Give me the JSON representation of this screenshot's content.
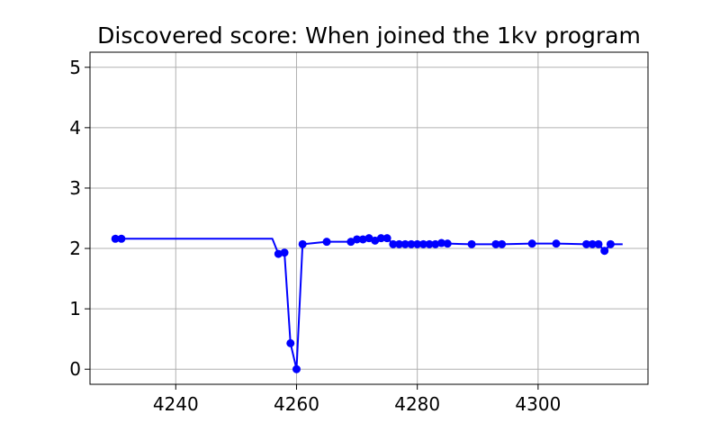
{
  "chart_data": {
    "type": "line",
    "title": "Discovered score: When joined the 1kv program",
    "xlabel": "",
    "ylabel": "",
    "xlim": [
      4225.8,
      4318.2
    ],
    "ylim": [
      -0.25,
      5.25
    ],
    "xticks": [
      4240,
      4260,
      4280,
      4300
    ],
    "yticks": [
      0,
      1,
      2,
      3,
      4,
      5
    ],
    "grid": true,
    "colors": {
      "line": "#0000ff",
      "grid": "#b0b0b0",
      "axes": "#000000"
    },
    "line": {
      "x": [
        4230,
        4256,
        4257,
        4258,
        4259,
        4260,
        4261,
        4265,
        4269,
        4270,
        4271,
        4272,
        4273,
        4274,
        4275,
        4276,
        4277,
        4278,
        4279,
        4280,
        4281,
        4282,
        4283,
        4284,
        4285,
        4289,
        4293,
        4294,
        4299,
        4303,
        4308,
        4309,
        4310,
        4311,
        4312,
        4314
      ],
      "y": [
        2.16,
        2.16,
        1.91,
        1.93,
        0.43,
        0.0,
        2.07,
        2.11,
        2.11,
        2.15,
        2.15,
        2.17,
        2.13,
        2.17,
        2.17,
        2.07,
        2.07,
        2.07,
        2.07,
        2.07,
        2.07,
        2.07,
        2.07,
        2.09,
        2.08,
        2.07,
        2.07,
        2.07,
        2.08,
        2.08,
        2.07,
        2.07,
        2.07,
        1.96,
        2.07,
        2.07
      ]
    },
    "points": {
      "x": [
        4230,
        4231,
        4257,
        4258,
        4259,
        4260,
        4261,
        4265,
        4269,
        4270,
        4271,
        4272,
        4273,
        4274,
        4275,
        4276,
        4277,
        4278,
        4279,
        4280,
        4281,
        4282,
        4283,
        4284,
        4285,
        4289,
        4293,
        4294,
        4299,
        4303,
        4308,
        4309,
        4310,
        4311,
        4312
      ],
      "y": [
        2.16,
        2.16,
        1.91,
        1.93,
        0.43,
        0.0,
        2.07,
        2.11,
        2.11,
        2.15,
        2.15,
        2.17,
        2.13,
        2.17,
        2.17,
        2.07,
        2.07,
        2.07,
        2.07,
        2.07,
        2.07,
        2.07,
        2.07,
        2.09,
        2.08,
        2.07,
        2.07,
        2.07,
        2.08,
        2.08,
        2.07,
        2.07,
        2.07,
        1.96,
        2.07
      ]
    }
  }
}
